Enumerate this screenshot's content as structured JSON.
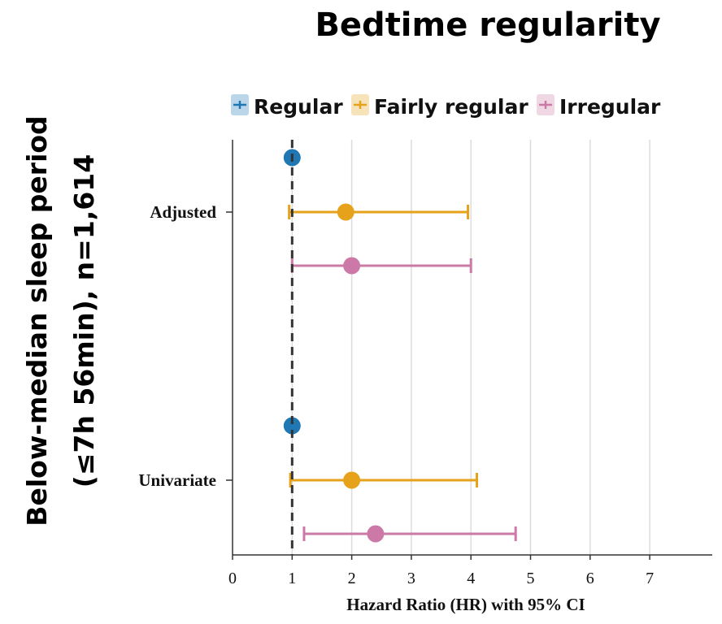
{
  "chart_data": {
    "type": "forest",
    "title": "Bedtime regularity",
    "ylabel_lines": [
      "Below-median sleep period",
      "(≤7h 56min), n=1,614"
    ],
    "xlabel": "Hazard Ratio (HR) with 95% CI",
    "xlim": [
      0,
      8
    ],
    "xticks": [
      "0",
      "1",
      "2",
      "3",
      "4",
      "5",
      "6",
      "7"
    ],
    "reference_line": 1,
    "grid": "vertical",
    "legend_position": "top",
    "series": [
      {
        "name": "Regular",
        "color": "#1f77b4"
      },
      {
        "name": "Fairly regular",
        "color": "#e5a21a"
      },
      {
        "name": "Irregular",
        "color": "#cc79a7"
      }
    ],
    "groups": [
      {
        "label": "Adjusted",
        "rows": [
          {
            "series": "Regular",
            "hr": 1.0,
            "lo": null,
            "hi": null
          },
          {
            "series": "Fairly regular",
            "hr": 1.9,
            "lo": 0.95,
            "hi": 3.95
          },
          {
            "series": "Irregular",
            "hr": 2.0,
            "lo": 1.0,
            "hi": 4.0
          }
        ]
      },
      {
        "label": "Univariate",
        "rows": [
          {
            "series": "Regular",
            "hr": 1.0,
            "lo": null,
            "hi": null
          },
          {
            "series": "Fairly regular",
            "hr": 2.0,
            "lo": 0.97,
            "hi": 4.1
          },
          {
            "series": "Irregular",
            "hr": 2.4,
            "lo": 1.2,
            "hi": 4.75
          }
        ]
      }
    ]
  }
}
